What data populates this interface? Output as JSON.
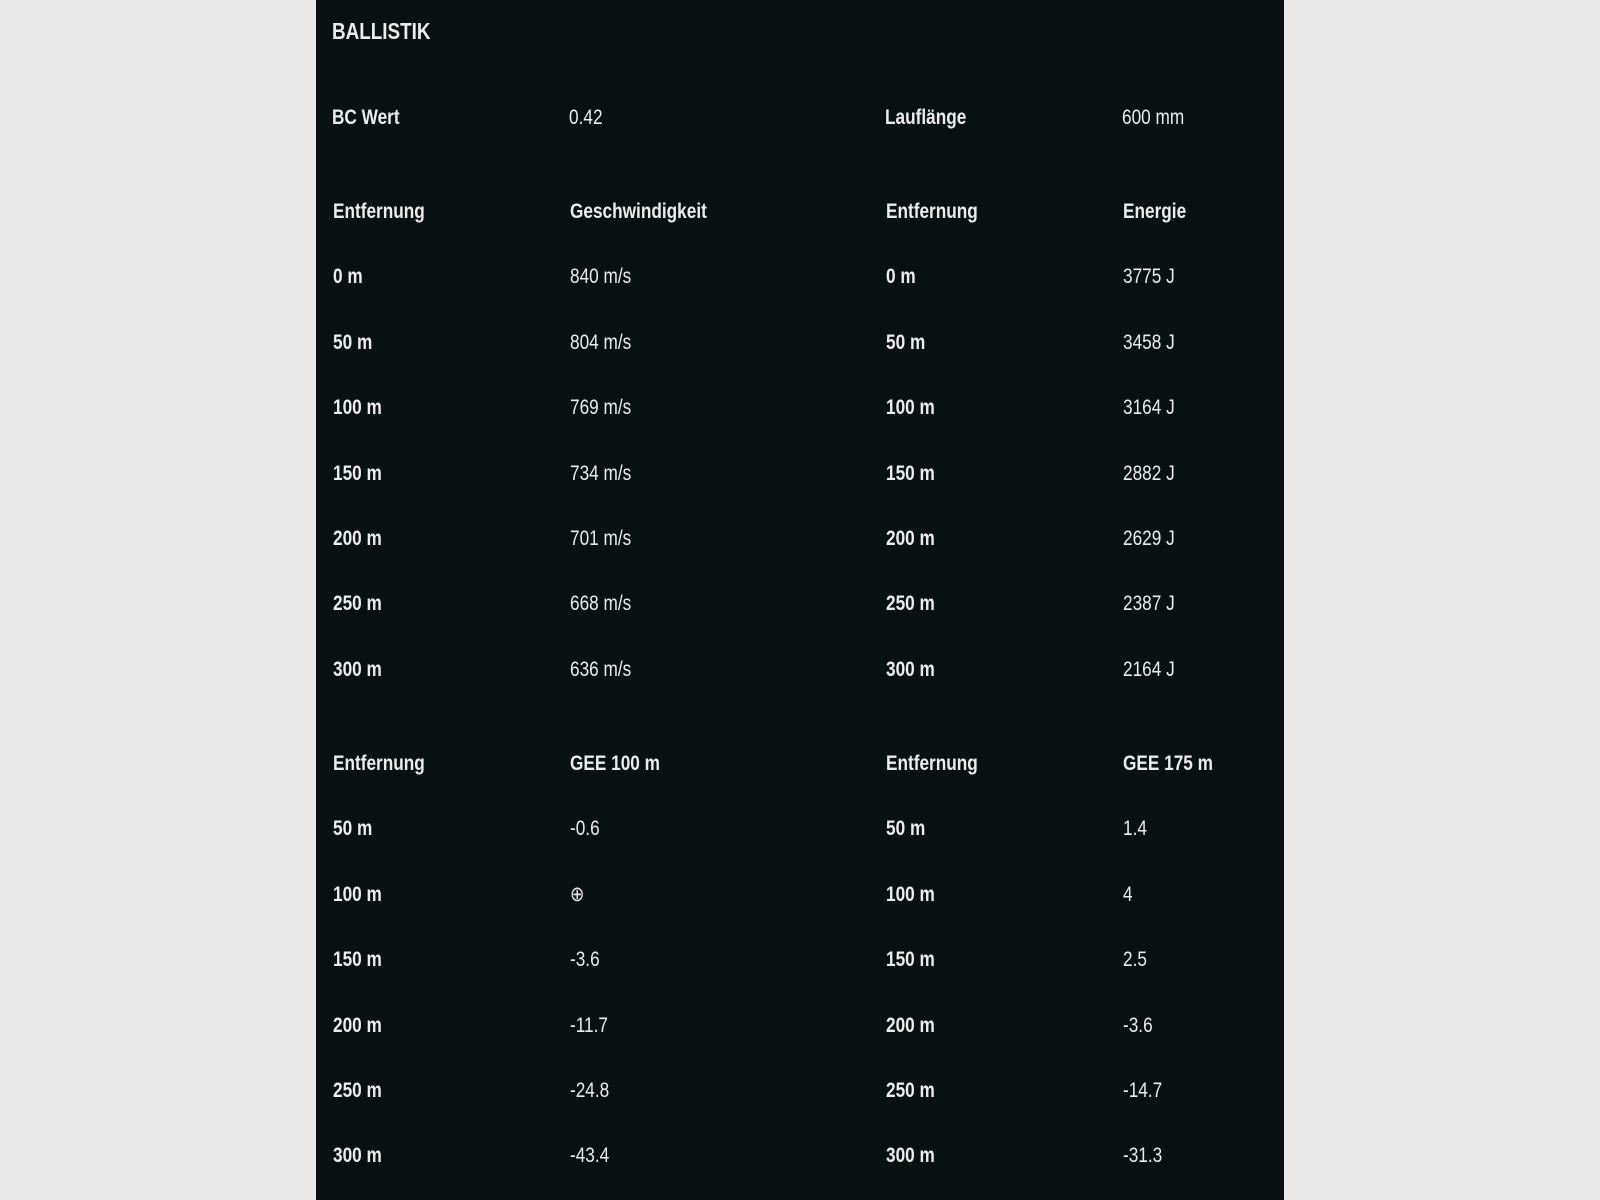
{
  "title": "BALLISTIK",
  "specs": [
    {
      "label": "BC Wert",
      "value": "0.42"
    },
    {
      "label": "Lauflänge",
      "value": "600 mm"
    }
  ],
  "tables": [
    {
      "left": {
        "headers": [
          "Entfernung",
          "Geschwindigkeit"
        ],
        "rows": [
          [
            "0 m",
            "840 m/s"
          ],
          [
            "50 m",
            "804 m/s"
          ],
          [
            "100 m",
            "769 m/s"
          ],
          [
            "150 m",
            "734 m/s"
          ],
          [
            "200 m",
            "701 m/s"
          ],
          [
            "250 m",
            "668 m/s"
          ],
          [
            "300 m",
            "636 m/s"
          ]
        ]
      },
      "right": {
        "headers": [
          "Entfernung",
          "Energie"
        ],
        "rows": [
          [
            "0 m",
            "3775 J"
          ],
          [
            "50 m",
            "3458 J"
          ],
          [
            "100 m",
            "3164 J"
          ],
          [
            "150 m",
            "2882 J"
          ],
          [
            "200 m",
            "2629 J"
          ],
          [
            "250 m",
            "2387 J"
          ],
          [
            "300 m",
            "2164 J"
          ]
        ]
      }
    },
    {
      "left": {
        "headers": [
          "Entfernung",
          "GEE 100 m"
        ],
        "rows": [
          [
            "50 m",
            "-0.6"
          ],
          [
            "100 m",
            "⊕"
          ],
          [
            "150 m",
            "-3.6"
          ],
          [
            "200 m",
            "-11.7"
          ],
          [
            "250 m",
            "-24.8"
          ],
          [
            "300 m",
            "-43.4"
          ]
        ]
      },
      "right": {
        "headers": [
          "Entfernung",
          "GEE 175 m"
        ],
        "rows": [
          [
            "50 m",
            "1.4"
          ],
          [
            "100 m",
            "4"
          ],
          [
            "150 m",
            "2.5"
          ],
          [
            "200 m",
            "-3.6"
          ],
          [
            "250 m",
            "-14.7"
          ],
          [
            "300 m",
            "-31.3"
          ]
        ]
      }
    }
  ]
}
